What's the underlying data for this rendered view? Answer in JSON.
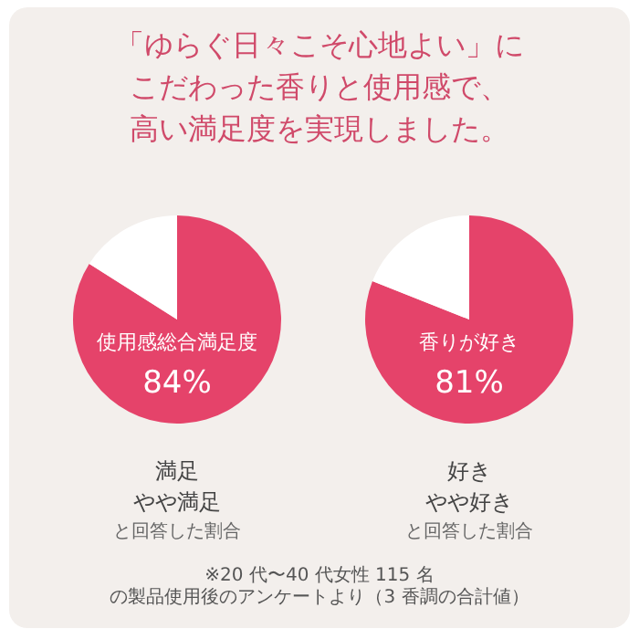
{
  "chart_data": [
    {
      "type": "pie",
      "title": "「ゆらぐ日々こそ心地よい」にこだわった香りと使用感で、高い満足度を実現しました。",
      "categories": [
        "使用感総合満足度",
        null
      ],
      "values": [
        84,
        16
      ],
      "colors": [
        "#e5436a",
        "#ffffff"
      ],
      "value_labels": [
        "84%",
        null
      ],
      "annotations": [
        "満足",
        "やや満足",
        "と回答した割合"
      ]
    },
    {
      "type": "pie",
      "categories": [
        "香りが好き",
        null
      ],
      "values": [
        81,
        19
      ],
      "colors": [
        "#e5436a",
        "#ffffff"
      ],
      "value_labels": [
        "81%",
        null
      ],
      "annotations": [
        "好き",
        "やや好き",
        "と回答した割合",
        "※20 代〜40 代女性 115 名の製品使用後のアンケートより（3 香調の合計値）"
      ]
    }
  ]
}
